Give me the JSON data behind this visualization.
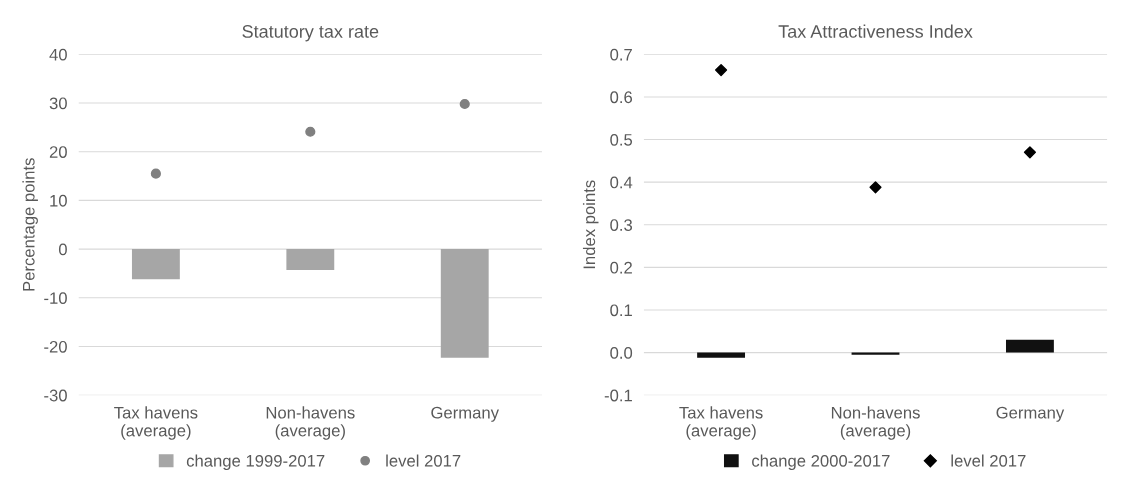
{
  "chart_data": [
    {
      "type": "bar",
      "title": "Statutory tax rate",
      "ylabel": "Percentage points",
      "categories": [
        "Tax havens\n(average)",
        "Non-havens\n(average)",
        "Germany"
      ],
      "series": [
        {
          "name": "change 1999-2017",
          "color": "#a6a6a6",
          "values": [
            -6.2,
            -4.3,
            -22.3
          ]
        },
        {
          "name": "level 2017",
          "type": "scatter",
          "color": "#808080",
          "marker": "circle",
          "values": [
            15.5,
            24.1,
            29.8
          ]
        }
      ],
      "ylim": [
        -30,
        40
      ],
      "yticks": [
        -30,
        -20,
        -10,
        0,
        10,
        20,
        30,
        40
      ],
      "grid": "y",
      "legend": "bottom"
    },
    {
      "type": "bar",
      "title": "Tax Attractiveness Index",
      "ylabel": "Index points",
      "categories": [
        "Tax havens\n(average)",
        "Non-havens\n(average)",
        "Germany"
      ],
      "series": [
        {
          "name": "change 2000-2017",
          "color": "#111111",
          "values": [
            -0.012,
            -0.005,
            0.03
          ]
        },
        {
          "name": "level 2017",
          "type": "scatter",
          "color": "#000000",
          "marker": "diamond",
          "values": [
            0.663,
            0.388,
            0.47
          ]
        }
      ],
      "ylim": [
        -0.1,
        0.7
      ],
      "yticks": [
        {
          "value": -0.1,
          "label": "-0.1"
        },
        {
          "value": 0,
          "label": "0.0"
        },
        0.1,
        0.2,
        0.3,
        0.4,
        0.5,
        0.6,
        0.7
      ],
      "grid": "y",
      "legend": "bottom"
    }
  ]
}
